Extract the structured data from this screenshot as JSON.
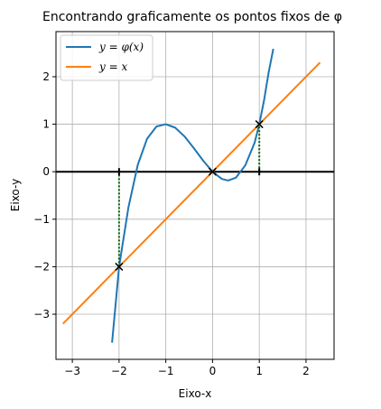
{
  "chart_data": {
    "type": "line",
    "title": "Encontrando graficamente os pontos fixos de φ",
    "xlabel": "Eixo-x",
    "ylabel": "Eixo-y",
    "xlim": [
      -3.35,
      2.6
    ],
    "ylim": [
      -3.95,
      2.95
    ],
    "xticks": [
      -3,
      -2,
      -1,
      0,
      1,
      2
    ],
    "yticks": [
      -3,
      -2,
      -1,
      0,
      1,
      2
    ],
    "xtick_labels": [
      "−3",
      "−2",
      "−1",
      "0",
      "1",
      "2"
    ],
    "ytick_labels": [
      "−3",
      "−2",
      "−1",
      "0",
      "1",
      "2"
    ],
    "grid": true,
    "legend_position": "top-left",
    "series": [
      {
        "name": "y = φ(x)",
        "color": "#1f77b4",
        "style": "solid",
        "x": [
          -2.15,
          -2.0,
          -1.8,
          -1.6,
          -1.4,
          -1.2,
          -1.0,
          -0.8,
          -0.6,
          -0.4,
          -0.2,
          0.0,
          0.2,
          0.333,
          0.5,
          0.7,
          0.9,
          1.0,
          1.1,
          1.2,
          1.3
        ],
        "y": [
          -3.6,
          -2.0,
          -0.752,
          0.144,
          0.696,
          0.952,
          1.0,
          0.928,
          0.744,
          0.496,
          0.232,
          0.0,
          -0.152,
          -0.185,
          -0.125,
          0.133,
          0.609,
          1.0,
          1.491,
          2.088,
          2.587
        ]
      },
      {
        "name": "y = x",
        "color": "#ff7f0e",
        "style": "solid",
        "x": [
          -3.2,
          2.3
        ],
        "y": [
          -3.2,
          2.3
        ]
      }
    ],
    "fixed_points": [
      {
        "x": -2,
        "y": -2
      },
      {
        "x": 0,
        "y": 0
      },
      {
        "x": 1,
        "y": 1
      }
    ],
    "horizontal_line": {
      "y": 0,
      "color": "#000000"
    },
    "dotted_segments": [
      {
        "x": -2,
        "y": [
          -2,
          0
        ],
        "color": "#006400"
      },
      {
        "x": 1,
        "y": [
          0,
          1
        ],
        "color": "#006400"
      }
    ]
  },
  "legend": {
    "items": [
      {
        "label": "y = φ(x)",
        "color": "#1f77b4"
      },
      {
        "label": "y = x",
        "color": "#ff7f0e"
      }
    ]
  }
}
